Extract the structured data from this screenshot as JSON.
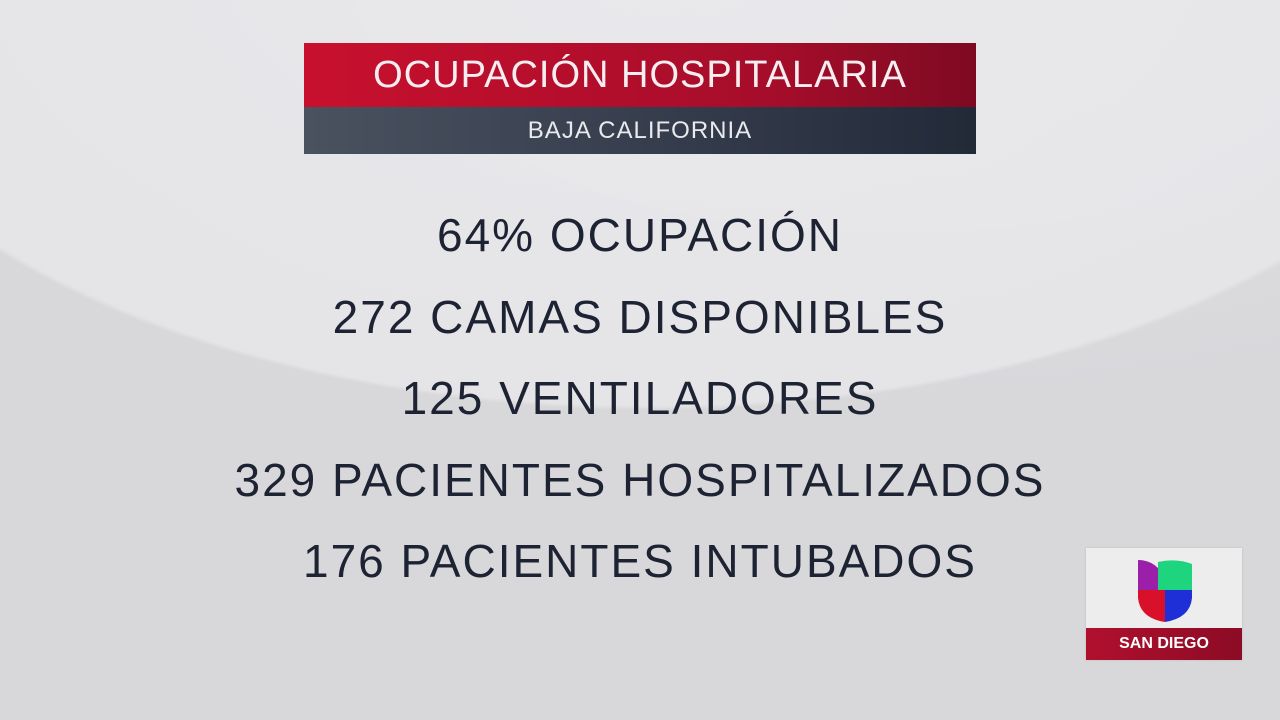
{
  "header": {
    "title": "OCUPACIÓN HOSPITALARIA",
    "subtitle": "BAJA CALIFORNIA"
  },
  "stats": [
    "64% OCUPACIÓN",
    "272 CAMAS DISPONIBLES",
    "125 VENTILADORES",
    "329 PACIENTES HOSPITALIZADOS",
    "176 PACIENTES INTUBADOS"
  ],
  "logo": {
    "icon": "univision-logo-icon",
    "location": "SAN DIEGO"
  },
  "colors": {
    "accent_red": "#c8102e",
    "dark": "#2f3646",
    "text": "#1d2333"
  }
}
